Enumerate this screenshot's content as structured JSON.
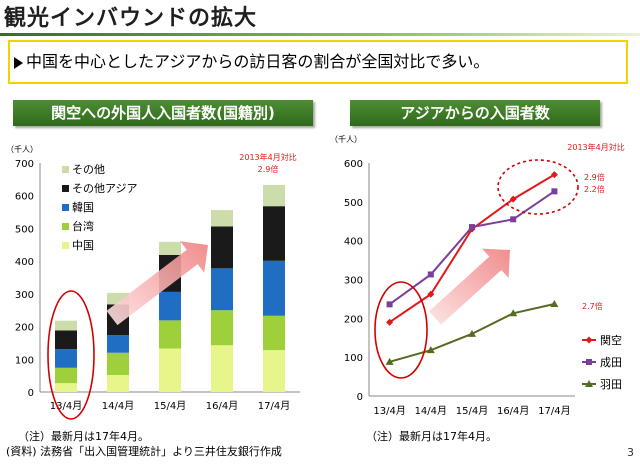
{
  "page": {
    "title": "観光インバウンドの拡大",
    "callout": "中国を中心としたアジアからの訪日客の割合が全国対比で多い。",
    "page_number": "3",
    "note_left_1": "（注）最新月は17年4月。",
    "note_left_2": "(資料) 法務省「出入国管理統計」より三井住友銀行作成",
    "note_right": "（注）最新月は17年4月。"
  },
  "chart_data": [
    {
      "type": "bar",
      "stacked": true,
      "title": "関空への外国人入国者数(国籍別)",
      "unit_label": "（千人）",
      "categories": [
        "13/4月",
        "14/4月",
        "15/4月",
        "16/4月",
        "17/4月"
      ],
      "ylim": [
        0,
        700
      ],
      "yticks": [
        0,
        100,
        200,
        300,
        400,
        500,
        600,
        700
      ],
      "legend_position": "top-left",
      "series": [
        {
          "name": "中国",
          "color": "#e8f58a",
          "values": [
            27,
            52,
            133,
            143,
            128
          ]
        },
        {
          "name": "台湾",
          "color": "#9dd03a",
          "values": [
            47,
            68,
            86,
            107,
            105
          ]
        },
        {
          "name": "韓国",
          "color": "#1f6ec4",
          "values": [
            57,
            54,
            87,
            128,
            168
          ]
        },
        {
          "name": "その他アジア",
          "color": "#1a1a1a",
          "values": [
            57,
            94,
            113,
            128,
            167
          ]
        },
        {
          "name": "その他",
          "color": "#ccdcaa",
          "values": [
            30,
            35,
            40,
            50,
            65
          ]
        }
      ],
      "annotation": {
        "label": "2013年4月対比",
        "value": "2.9倍"
      }
    },
    {
      "type": "line",
      "title": "アジアからの入国者数",
      "unit_label": "（千人）",
      "categories": [
        "13/4月",
        "14/4月",
        "15/4月",
        "16/4月",
        "17/4月"
      ],
      "ylim": [
        0,
        600
      ],
      "yticks": [
        0,
        100,
        200,
        300,
        400,
        500,
        600
      ],
      "legend_position": "right",
      "series": [
        {
          "name": "関空",
          "color": "#e01a1a",
          "marker": "diamond",
          "values": [
            190,
            262,
            430,
            507,
            570
          ],
          "ratio": "2.9倍"
        },
        {
          "name": "成田",
          "color": "#7b3f9a",
          "marker": "square",
          "values": [
            236,
            313,
            435,
            455,
            527
          ],
          "ratio": "2.2倍"
        },
        {
          "name": "羽田",
          "color": "#556b22",
          "marker": "triangle",
          "values": [
            88,
            118,
            160,
            213,
            237
          ],
          "ratio": "2.7倍"
        }
      ],
      "annotation": {
        "label": "2013年4月対比"
      }
    }
  ]
}
